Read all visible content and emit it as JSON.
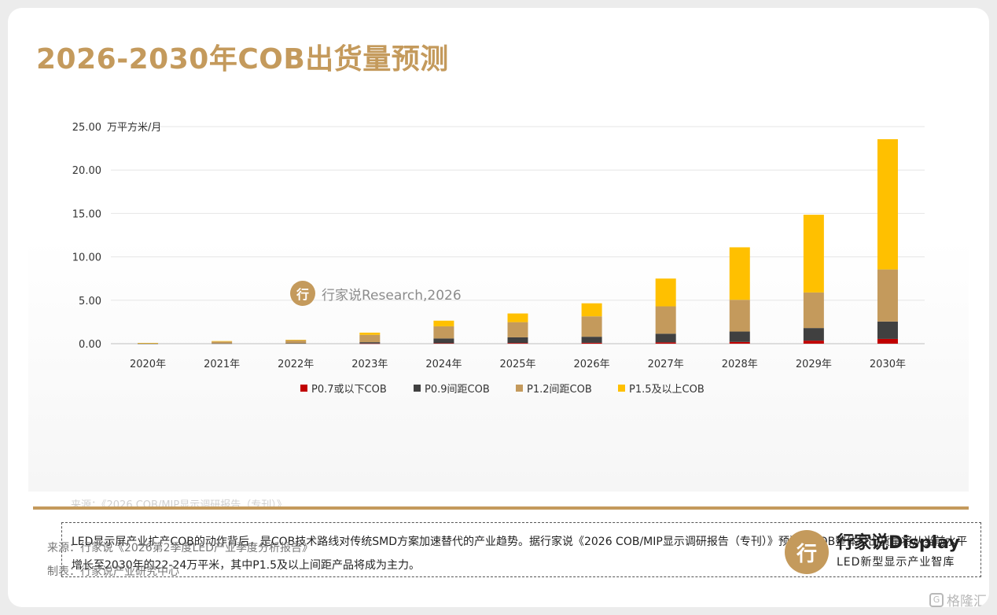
{
  "title": "2026-2030年COB出货量预测",
  "watermark": {
    "logo": "行",
    "text": "行家说Research,2026"
  },
  "chart_source": "来源：《2026 COB/MIP显示调研报告（专刊）》",
  "note": "LED显示屏产业扩产COB的动作背后，是COB技术路线对传统SMD方案加速替代的产业趋势。据行家说《2026 COB/MIP显示调研报告（专刊）》预测，COB整体月出货量将从当前水平增长至2030年的22-24万平米，其中P1.5及以上间距产品将成为主力。",
  "footer": {
    "source": "来源：行家说《2026第2季度LED产业季度分析报告》",
    "maker": "制表：行家说产业研究中心"
  },
  "brand": {
    "logo": "行",
    "name": "行家说Display",
    "sub": "LED新型显示产业智库"
  },
  "corner_mark": {
    "icon": "G",
    "text": "格隆汇"
  },
  "chart_data": {
    "type": "bar",
    "stacked": true,
    "unit_label": "万平方米/月",
    "categories": [
      "2020年",
      "2021年",
      "2022年",
      "2023年",
      "2024年",
      "2025年",
      "2026年",
      "2027年",
      "2028年",
      "2029年",
      "2030年"
    ],
    "series": [
      {
        "name": "P0.7或以下COB",
        "color": "#c00000",
        "values": [
          0,
          0,
          0,
          0.02,
          0.05,
          0.08,
          0.1,
          0.15,
          0.2,
          0.35,
          0.55
        ]
      },
      {
        "name": "P0.9间距COB",
        "color": "#404040",
        "values": [
          0.01,
          0.03,
          0.05,
          0.15,
          0.55,
          0.65,
          0.7,
          1.0,
          1.2,
          1.45,
          2.0
        ]
      },
      {
        "name": "P1.2间距COB",
        "color": "#c49a5c",
        "values": [
          0.06,
          0.22,
          0.35,
          0.85,
          1.4,
          1.75,
          2.35,
          3.15,
          3.65,
          4.1,
          6.0
        ]
      },
      {
        "name": "P1.5及以上COB",
        "color": "#ffc000",
        "values": [
          0.02,
          0.05,
          0.05,
          0.25,
          0.65,
          1.0,
          1.5,
          3.2,
          6.05,
          8.95,
          15.0
        ]
      }
    ],
    "yticks": [
      "0.00",
      "5.00",
      "10.00",
      "15.00",
      "20.00",
      "25.00"
    ],
    "ylim": [
      0,
      25
    ],
    "grid": true,
    "legend_position": "bottom"
  }
}
